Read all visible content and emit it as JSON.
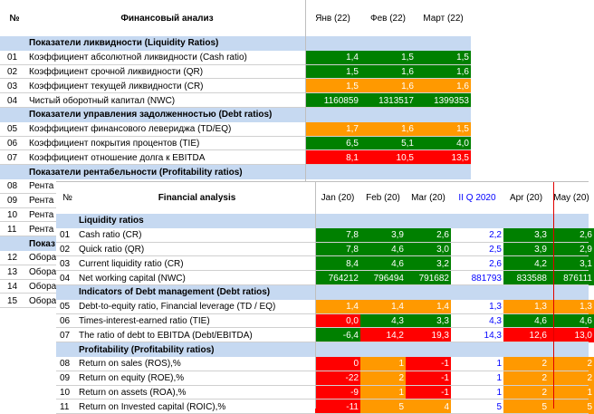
{
  "back": {
    "header": {
      "no": "№",
      "title": "Финансовый анализ",
      "months": [
        "Янв (22)",
        "Фев (22)",
        "Март (22)"
      ]
    },
    "sections": [
      {
        "title": "Показатели ликвидности (Liquidity Ratios)",
        "rows": [
          {
            "no": "01",
            "label": "Коэффициент абсолютной ликвидности (Cash ratio)",
            "v": [
              "1,4",
              "1,5",
              "1,5"
            ],
            "c": [
              "g",
              "g",
              "g"
            ]
          },
          {
            "no": "02",
            "label": "Коэффициент срочной ликвидности (QR)",
            "v": [
              "1,5",
              "1,6",
              "1,6"
            ],
            "c": [
              "g",
              "g",
              "g"
            ]
          },
          {
            "no": "03",
            "label": "Коэффициент текущей ликвидности (CR)",
            "v": [
              "1,5",
              "1,6",
              "1,6"
            ],
            "c": [
              "o",
              "o",
              "o"
            ]
          },
          {
            "no": "04",
            "label": "Чистый оборотный капитал (NWC)",
            "v": [
              "1160859",
              "1313517",
              "1399353"
            ],
            "c": [
              "g",
              "g",
              "g"
            ]
          }
        ]
      },
      {
        "title": "Показатели управления задолженностью (Debt ratios)",
        "rows": [
          {
            "no": "05",
            "label": "Коэффициент финансового левериджа (TD/EQ)",
            "v": [
              "1,7",
              "1,6",
              "1,5"
            ],
            "c": [
              "o",
              "o",
              "o"
            ]
          },
          {
            "no": "06",
            "label": "Коэффициент покрытия процентов (TIE)",
            "v": [
              "6,5",
              "5,1",
              "4,0"
            ],
            "c": [
              "g",
              "g",
              "g"
            ]
          },
          {
            "no": "07",
            "label": "Коэффициент отношение долга к EBITDA",
            "v": [
              "8,1",
              "10,5",
              "13,5"
            ],
            "c": [
              "r",
              "r",
              "r"
            ]
          }
        ]
      },
      {
        "title": "Показатели рентабельности (Profitability ratios)",
        "rows": [
          {
            "no": "08",
            "label": "Рента"
          },
          {
            "no": "09",
            "label": "Рента"
          },
          {
            "no": "10",
            "label": "Рента"
          },
          {
            "no": "11",
            "label": "Рента"
          }
        ]
      },
      {
        "title": "Показ",
        "rows": [
          {
            "no": "12",
            "label": "Обора"
          },
          {
            "no": "13",
            "label": "Обора"
          },
          {
            "no": "14",
            "label": "Обора"
          },
          {
            "no": "15",
            "label": "Обора"
          }
        ]
      }
    ]
  },
  "front": {
    "header": {
      "no": "№",
      "title": "Financial analysis",
      "months": [
        "Jan (20)",
        "Feb (20)",
        "Mar (20)",
        "II Q 2020",
        "Apr (20)",
        "May (20)"
      ]
    },
    "sections": [
      {
        "title": "Liquidity ratios",
        "rows": [
          {
            "no": "01",
            "label": "Cash ratio (CR)",
            "v": [
              "7,8",
              "3,9",
              "2,6",
              "2,2",
              "3,3",
              "2,6"
            ],
            "c": [
              "g",
              "g",
              "g",
              "q",
              "g",
              "g"
            ]
          },
          {
            "no": "02",
            "label": "Quick ratio (QR)",
            "v": [
              "7,8",
              "4,6",
              "3,0",
              "2,5",
              "3,9",
              "2,9"
            ],
            "c": [
              "g",
              "g",
              "g",
              "q",
              "g",
              "g"
            ]
          },
          {
            "no": "03",
            "label": "Current liquidity ratio (CR)",
            "v": [
              "8,4",
              "4,6",
              "3,2",
              "2,6",
              "4,2",
              "3,1"
            ],
            "c": [
              "g",
              "g",
              "g",
              "q",
              "g",
              "g"
            ]
          },
          {
            "no": "04",
            "label": "Net working capital (NWC)",
            "v": [
              "764212",
              "796494",
              "791682",
              "881793",
              "833588",
              "876111"
            ],
            "c": [
              "g",
              "g",
              "g",
              "q",
              "g",
              "g"
            ]
          }
        ]
      },
      {
        "title": "Indicators of Debt management (Debt ratios)",
        "rows": [
          {
            "no": "05",
            "label": "Debt-to-equity ratio, Financial leverage (TD / EQ)",
            "v": [
              "1,4",
              "1,4",
              "1,4",
              "1,3",
              "1,3",
              "1,3"
            ],
            "c": [
              "o",
              "o",
              "o",
              "q",
              "o",
              "o"
            ]
          },
          {
            "no": "06",
            "label": "Times-interest-earned ratio (TIE)",
            "v": [
              "0,0",
              "4,3",
              "3,3",
              "4,3",
              "4,6",
              "4,6"
            ],
            "c": [
              "r",
              "g",
              "g",
              "q",
              "g",
              "g"
            ]
          },
          {
            "no": "07",
            "label": "The ratio of debt to EBITDA (Debt/EBITDA)",
            "v": [
              "-6,4",
              "14,2",
              "19,3",
              "14,3",
              "12,6",
              "13,0"
            ],
            "c": [
              "g",
              "r",
              "r",
              "q",
              "r",
              "r"
            ]
          }
        ]
      },
      {
        "title": "Profitability (Profitability ratios)",
        "rows": [
          {
            "no": "08",
            "label": "Return on sales (ROS),%",
            "v": [
              "0",
              "1",
              "-1",
              "1",
              "2",
              "2"
            ],
            "c": [
              "r",
              "o",
              "r",
              "q",
              "o",
              "o"
            ]
          },
          {
            "no": "09",
            "label": "Return on equity (ROE),%",
            "v": [
              "-22",
              "2",
              "-1",
              "1",
              "2",
              "2"
            ],
            "c": [
              "r",
              "o",
              "r",
              "q",
              "o",
              "o"
            ]
          },
          {
            "no": "10",
            "label": "Return on assets (ROA),%",
            "v": [
              "-9",
              "1",
              "-1",
              "1",
              "2",
              "1"
            ],
            "c": [
              "r",
              "o",
              "r",
              "q",
              "o",
              "o"
            ]
          },
          {
            "no": "11",
            "label": "Return on Invested capital (ROIC),%",
            "v": [
              "-11",
              "5",
              "4",
              "5",
              "5",
              "5"
            ],
            "c": [
              "r",
              "o",
              "o",
              "q",
              "o",
              "o"
            ]
          }
        ]
      }
    ]
  }
}
